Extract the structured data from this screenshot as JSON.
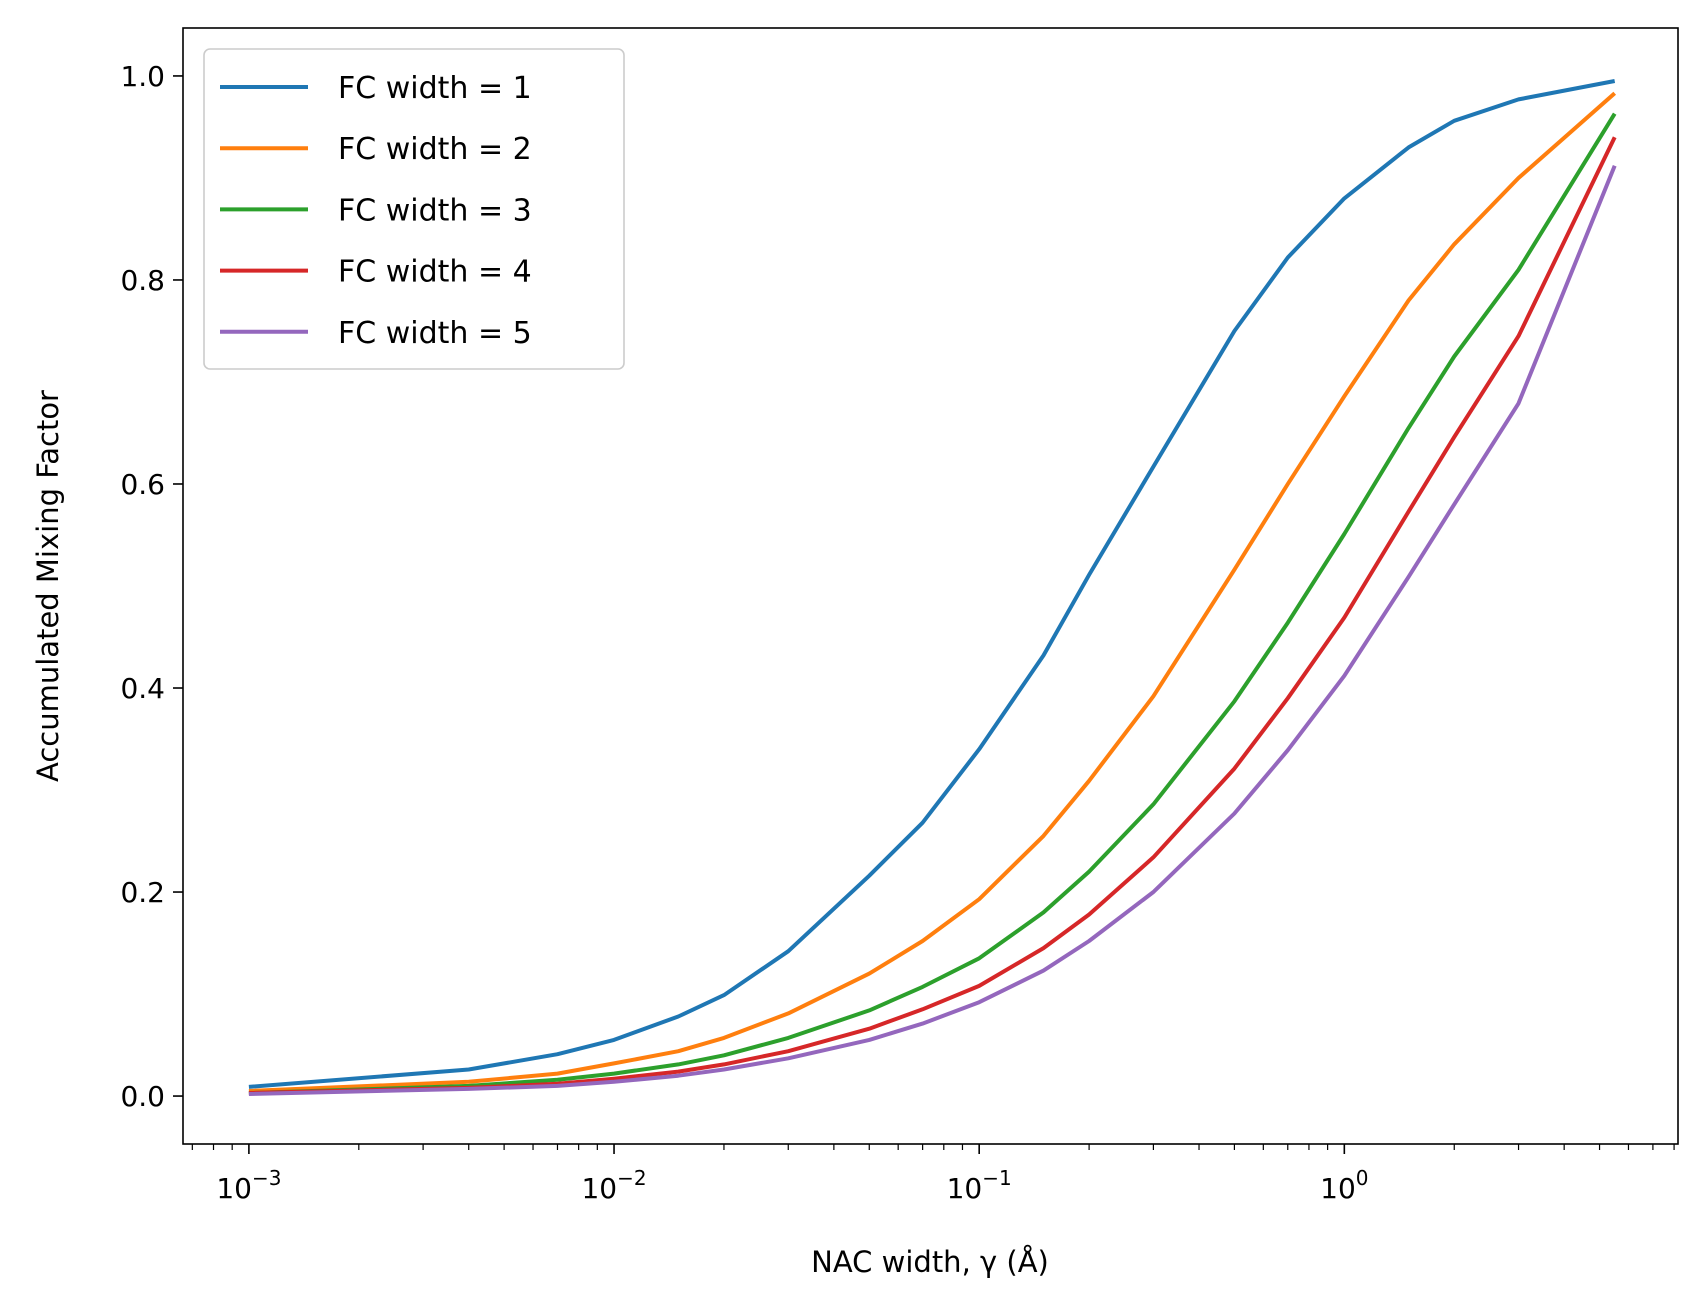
{
  "chart_data": {
    "type": "line",
    "xlabel": "NAC width, γ (Å)",
    "ylabel": "Accumulated Mixing Factor",
    "xscale": "log",
    "xlim": [
      0.00066,
      8.2
    ],
    "ylim": [
      -0.047,
      1.047
    ],
    "x_ticks": [
      {
        "value": 0.001,
        "base": "10",
        "exp": "−3"
      },
      {
        "value": 0.01,
        "base": "10",
        "exp": "−2"
      },
      {
        "value": 0.1,
        "base": "10",
        "exp": "−1"
      },
      {
        "value": 1,
        "base": "10",
        "exp": "0"
      }
    ],
    "y_ticks": [
      {
        "value": 0.0,
        "label": "0.0"
      },
      {
        "value": 0.2,
        "label": "0.2"
      },
      {
        "value": 0.4,
        "label": "0.4"
      },
      {
        "value": 0.6,
        "label": "0.6"
      },
      {
        "value": 0.8,
        "label": "0.8"
      },
      {
        "value": 1.0,
        "label": "1.0"
      }
    ],
    "grid": false,
    "legend_position": "upper-left",
    "x": [
      0.001,
      0.004,
      0.007,
      0.01,
      0.015,
      0.02,
      0.03,
      0.05,
      0.07,
      0.1,
      0.15,
      0.2,
      0.3,
      0.5,
      0.7,
      1.0,
      1.5,
      2.0,
      3.0,
      5.5
    ],
    "series": [
      {
        "name": "FC width = 1",
        "color": "#1f77b4",
        "values": [
          0.009,
          0.026,
          0.041,
          0.055,
          0.078,
          0.099,
          0.142,
          0.216,
          0.268,
          0.34,
          0.432,
          0.511,
          0.617,
          0.75,
          0.822,
          0.88,
          0.93,
          0.956,
          0.977,
          0.995
        ]
      },
      {
        "name": "FC width = 2",
        "color": "#ff7f0e",
        "values": [
          0.005,
          0.014,
          0.022,
          0.032,
          0.044,
          0.057,
          0.081,
          0.12,
          0.152,
          0.193,
          0.255,
          0.309,
          0.392,
          0.516,
          0.6,
          0.686,
          0.78,
          0.835,
          0.9,
          0.983
        ]
      },
      {
        "name": "FC width = 3",
        "color": "#2ca02c",
        "values": [
          0.003,
          0.01,
          0.016,
          0.022,
          0.031,
          0.04,
          0.057,
          0.084,
          0.107,
          0.135,
          0.18,
          0.22,
          0.286,
          0.387,
          0.464,
          0.551,
          0.655,
          0.725,
          0.81,
          0.963
        ]
      },
      {
        "name": "FC width = 4",
        "color": "#d62728",
        "values": [
          0.003,
          0.008,
          0.012,
          0.017,
          0.024,
          0.031,
          0.044,
          0.066,
          0.085,
          0.108,
          0.145,
          0.178,
          0.234,
          0.321,
          0.39,
          0.469,
          0.573,
          0.646,
          0.745,
          0.94
        ]
      },
      {
        "name": "FC width = 5",
        "color": "#9467bd",
        "values": [
          0.002,
          0.007,
          0.01,
          0.014,
          0.02,
          0.026,
          0.037,
          0.055,
          0.071,
          0.092,
          0.123,
          0.152,
          0.2,
          0.277,
          0.339,
          0.412,
          0.509,
          0.58,
          0.679,
          0.912
        ]
      }
    ]
  }
}
